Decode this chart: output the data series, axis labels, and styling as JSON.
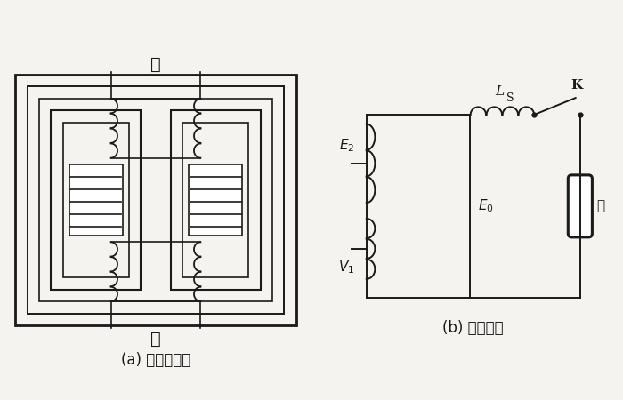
{
  "title_a": "(a) 变压器结构",
  "title_b": "(b) 等效电路",
  "label_chu": "初",
  "label_ci": "次",
  "label_lamp": "灯",
  "bg_color": "#f5f3f0",
  "line_color": "#1a1a1a",
  "fontsize_caption": 12,
  "fontsize_label": 13
}
